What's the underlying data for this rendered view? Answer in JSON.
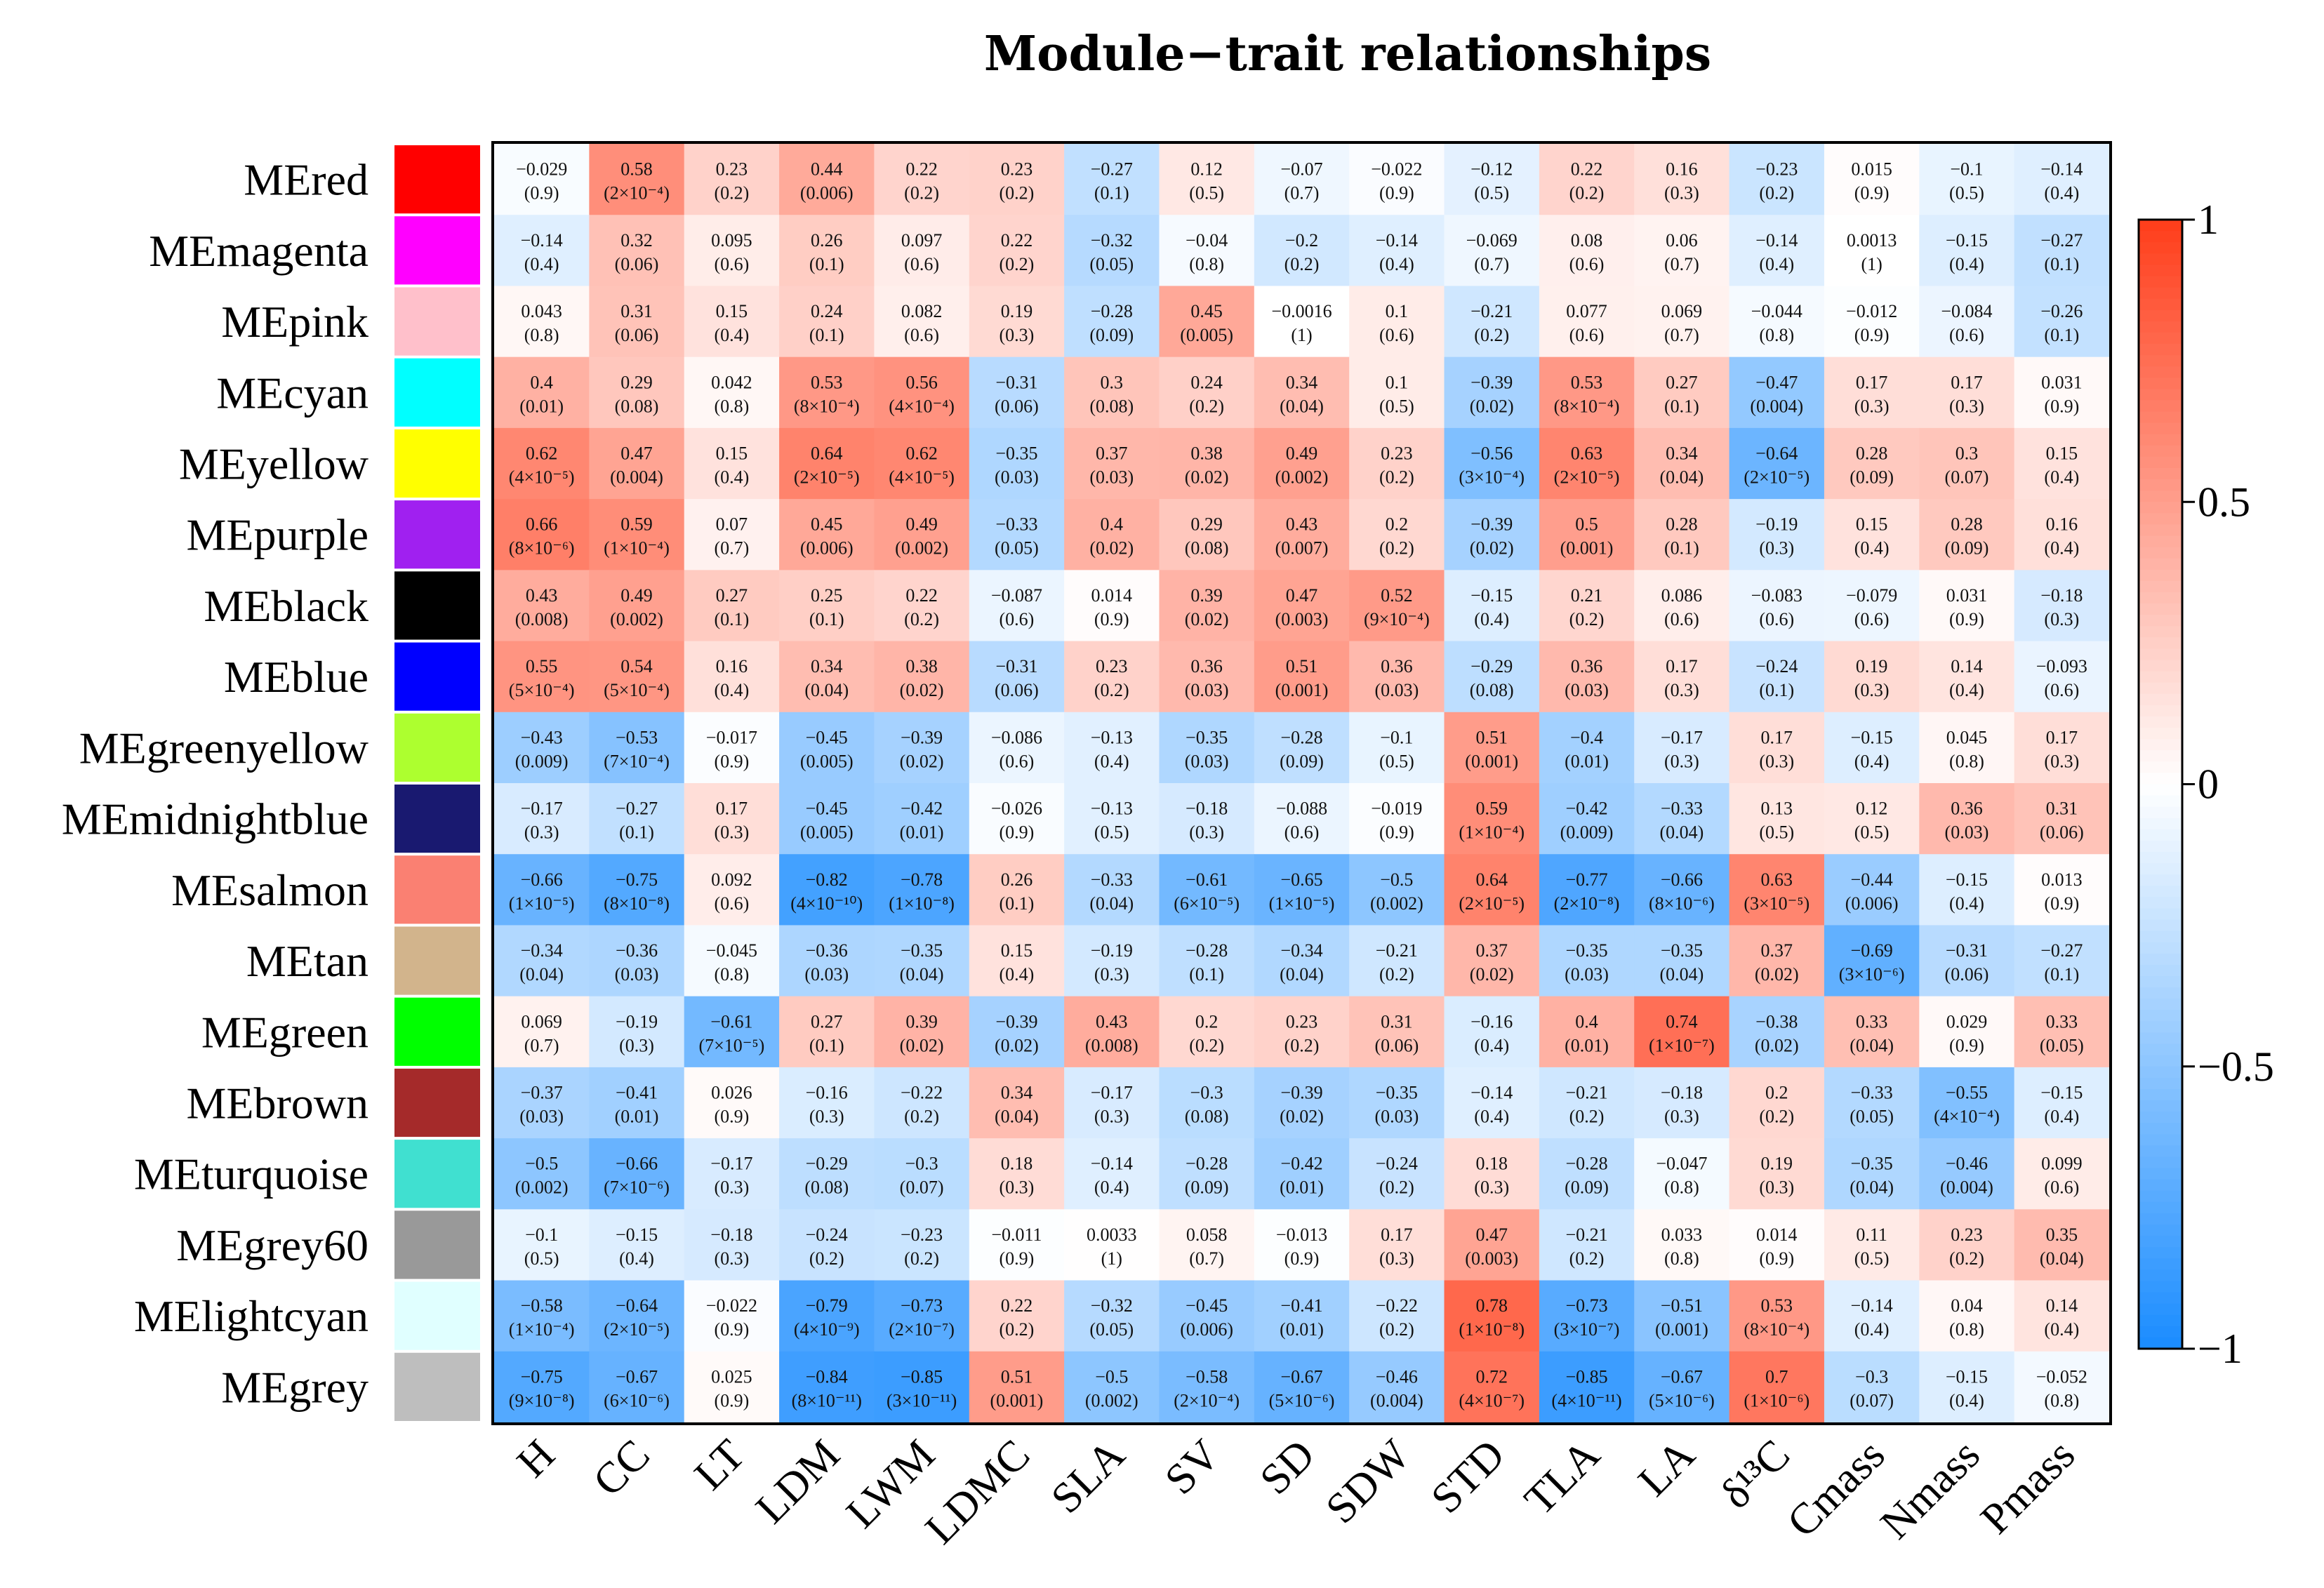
{
  "chart_data": {
    "type": "heatmap",
    "title": "Module−trait relationships",
    "rows": [
      "MEred",
      "MEmagenta",
      "MEpink",
      "MEcyan",
      "MEyellow",
      "MEpurple",
      "MEblack",
      "MEblue",
      "MEgreenyellow",
      "MEmidnightblue",
      "MEsalmon",
      "MEtan",
      "MEgreen",
      "MEbrown",
      "MEturquoise",
      "MEgrey60",
      "MElightcyan",
      "MEgrey"
    ],
    "row_colors": [
      "#ff0000",
      "#ff00ff",
      "#ffc0cb",
      "#00ffff",
      "#ffff00",
      "#a020f0",
      "#000000",
      "#0000ff",
      "#adff2f",
      "#191970",
      "#fa8072",
      "#d2b48c",
      "#00ff00",
      "#a52a2a",
      "#40e0d0",
      "#999999",
      "#e0ffff",
      "#bebebe"
    ],
    "columns": [
      "H",
      "CC",
      "LT",
      "LDM",
      "LWM",
      "LDMC",
      "SLA",
      "SV",
      "SD",
      "SDW",
      "STD",
      "TLA",
      "LA",
      "δ¹³C",
      "Cmass",
      "Nmass",
      "Pmass"
    ],
    "values": [
      [
        -0.029,
        0.58,
        0.23,
        0.44,
        0.22,
        0.23,
        -0.27,
        0.12,
        -0.07,
        -0.022,
        -0.12,
        0.22,
        0.16,
        -0.23,
        0.015,
        -0.1,
        -0.14
      ],
      [
        -0.14,
        0.32,
        0.095,
        0.26,
        0.097,
        0.22,
        -0.32,
        -0.04,
        -0.2,
        -0.14,
        -0.069,
        0.08,
        0.06,
        -0.14,
        0.0013,
        -0.15,
        -0.27
      ],
      [
        0.043,
        0.31,
        0.15,
        0.24,
        0.082,
        0.19,
        -0.28,
        0.45,
        -0.0016,
        0.1,
        -0.21,
        0.077,
        0.069,
        -0.044,
        -0.012,
        -0.084,
        -0.26
      ],
      [
        0.4,
        0.29,
        0.042,
        0.53,
        0.56,
        -0.31,
        0.3,
        0.24,
        0.34,
        0.1,
        -0.39,
        0.53,
        0.27,
        -0.47,
        0.17,
        0.17,
        0.031
      ],
      [
        0.62,
        0.47,
        0.15,
        0.64,
        0.62,
        -0.35,
        0.37,
        0.38,
        0.49,
        0.23,
        -0.56,
        0.63,
        0.34,
        -0.64,
        0.28,
        0.3,
        0.15
      ],
      [
        0.66,
        0.59,
        0.07,
        0.45,
        0.49,
        -0.33,
        0.4,
        0.29,
        0.43,
        0.2,
        -0.39,
        0.5,
        0.28,
        -0.19,
        0.15,
        0.28,
        0.16
      ],
      [
        0.43,
        0.49,
        0.27,
        0.25,
        0.22,
        -0.087,
        0.014,
        0.39,
        0.47,
        0.52,
        -0.15,
        0.21,
        0.086,
        -0.083,
        -0.079,
        0.031,
        -0.18
      ],
      [
        0.55,
        0.54,
        0.16,
        0.34,
        0.38,
        -0.31,
        0.23,
        0.36,
        0.51,
        0.36,
        -0.29,
        0.36,
        0.17,
        -0.24,
        0.19,
        0.14,
        -0.093
      ],
      [
        -0.43,
        -0.53,
        -0.017,
        -0.45,
        -0.39,
        -0.086,
        -0.13,
        -0.35,
        -0.28,
        -0.1,
        0.51,
        -0.4,
        -0.17,
        0.17,
        -0.15,
        0.045,
        0.17
      ],
      [
        -0.17,
        -0.27,
        0.17,
        -0.45,
        -0.42,
        -0.026,
        -0.13,
        -0.18,
        -0.088,
        -0.019,
        0.59,
        -0.42,
        -0.33,
        0.13,
        0.12,
        0.36,
        0.31
      ],
      [
        -0.66,
        -0.75,
        0.092,
        -0.82,
        -0.78,
        0.26,
        -0.33,
        -0.61,
        -0.65,
        -0.5,
        0.64,
        -0.77,
        -0.66,
        0.63,
        -0.44,
        -0.15,
        0.013
      ],
      [
        -0.34,
        -0.36,
        -0.045,
        -0.36,
        -0.35,
        0.15,
        -0.19,
        -0.28,
        -0.34,
        -0.21,
        0.37,
        -0.35,
        -0.35,
        0.37,
        -0.69,
        -0.31,
        -0.27
      ],
      [
        0.069,
        -0.19,
        -0.61,
        0.27,
        0.39,
        -0.39,
        0.43,
        0.2,
        0.23,
        0.31,
        -0.16,
        0.4,
        0.74,
        -0.38,
        0.33,
        0.029,
        0.33
      ],
      [
        -0.37,
        -0.41,
        0.026,
        -0.16,
        -0.22,
        0.34,
        -0.17,
        -0.3,
        -0.39,
        -0.35,
        -0.14,
        -0.21,
        -0.18,
        0.2,
        -0.33,
        -0.55,
        -0.15
      ],
      [
        -0.5,
        -0.66,
        -0.17,
        -0.29,
        -0.3,
        0.18,
        -0.14,
        -0.28,
        -0.42,
        -0.24,
        0.18,
        -0.28,
        -0.047,
        0.19,
        -0.35,
        -0.46,
        0.099
      ],
      [
        -0.1,
        -0.15,
        -0.18,
        -0.24,
        -0.23,
        -0.011,
        0.0033,
        0.058,
        -0.013,
        0.17,
        0.47,
        -0.21,
        0.033,
        0.014,
        0.11,
        0.23,
        0.35
      ],
      [
        -0.58,
        -0.64,
        -0.022,
        -0.79,
        -0.73,
        0.22,
        -0.32,
        -0.45,
        -0.41,
        -0.22,
        0.78,
        -0.73,
        -0.51,
        0.53,
        -0.14,
        0.04,
        0.14
      ],
      [
        -0.75,
        -0.67,
        0.025,
        -0.84,
        -0.85,
        0.51,
        -0.5,
        -0.58,
        -0.67,
        -0.46,
        0.72,
        -0.85,
        -0.67,
        0.7,
        -0.3,
        -0.15,
        -0.052
      ]
    ],
    "pvalues": [
      [
        "(0.9)",
        "(2×10⁻⁴)",
        "(0.2)",
        "(0.006)",
        "(0.2)",
        "(0.2)",
        "(0.1)",
        "(0.5)",
        "(0.7)",
        "(0.9)",
        "(0.5)",
        "(0.2)",
        "(0.3)",
        "(0.2)",
        "(0.9)",
        "(0.5)",
        "(0.4)"
      ],
      [
        "(0.4)",
        "(0.06)",
        "(0.6)",
        "(0.1)",
        "(0.6)",
        "(0.2)",
        "(0.05)",
        "(0.8)",
        "(0.2)",
        "(0.4)",
        "(0.7)",
        "(0.6)",
        "(0.7)",
        "(0.4)",
        "(1)",
        "(0.4)",
        "(0.1)"
      ],
      [
        "(0.8)",
        "(0.06)",
        "(0.4)",
        "(0.1)",
        "(0.6)",
        "(0.3)",
        "(0.09)",
        "(0.005)",
        "(1)",
        "(0.6)",
        "(0.2)",
        "(0.6)",
        "(0.7)",
        "(0.8)",
        "(0.9)",
        "(0.6)",
        "(0.1)"
      ],
      [
        "(0.01)",
        "(0.08)",
        "(0.8)",
        "(8×10⁻⁴)",
        "(4×10⁻⁴)",
        "(0.06)",
        "(0.08)",
        "(0.2)",
        "(0.04)",
        "(0.5)",
        "(0.02)",
        "(8×10⁻⁴)",
        "(0.1)",
        "(0.004)",
        "(0.3)",
        "(0.3)",
        "(0.9)"
      ],
      [
        "(4×10⁻⁵)",
        "(0.004)",
        "(0.4)",
        "(2×10⁻⁵)",
        "(4×10⁻⁵)",
        "(0.03)",
        "(0.03)",
        "(0.02)",
        "(0.002)",
        "(0.2)",
        "(3×10⁻⁴)",
        "(2×10⁻⁵)",
        "(0.04)",
        "(2×10⁻⁵)",
        "(0.09)",
        "(0.07)",
        "(0.4)"
      ],
      [
        "(8×10⁻⁶)",
        "(1×10⁻⁴)",
        "(0.7)",
        "(0.006)",
        "(0.002)",
        "(0.05)",
        "(0.02)",
        "(0.08)",
        "(0.007)",
        "(0.2)",
        "(0.02)",
        "(0.001)",
        "(0.1)",
        "(0.3)",
        "(0.4)",
        "(0.09)",
        "(0.4)"
      ],
      [
        "(0.008)",
        "(0.002)",
        "(0.1)",
        "(0.1)",
        "(0.2)",
        "(0.6)",
        "(0.9)",
        "(0.02)",
        "(0.003)",
        "(9×10⁻⁴)",
        "(0.4)",
        "(0.2)",
        "(0.6)",
        "(0.6)",
        "(0.6)",
        "(0.9)",
        "(0.3)"
      ],
      [
        "(5×10⁻⁴)",
        "(5×10⁻⁴)",
        "(0.4)",
        "(0.04)",
        "(0.02)",
        "(0.06)",
        "(0.2)",
        "(0.03)",
        "(0.001)",
        "(0.03)",
        "(0.08)",
        "(0.03)",
        "(0.3)",
        "(0.1)",
        "(0.3)",
        "(0.4)",
        "(0.6)"
      ],
      [
        "(0.009)",
        "(7×10⁻⁴)",
        "(0.9)",
        "(0.005)",
        "(0.02)",
        "(0.6)",
        "(0.4)",
        "(0.03)",
        "(0.09)",
        "(0.5)",
        "(0.001)",
        "(0.01)",
        "(0.3)",
        "(0.3)",
        "(0.4)",
        "(0.8)",
        "(0.3)"
      ],
      [
        "(0.3)",
        "(0.1)",
        "(0.3)",
        "(0.005)",
        "(0.01)",
        "(0.9)",
        "(0.5)",
        "(0.3)",
        "(0.6)",
        "(0.9)",
        "(1×10⁻⁴)",
        "(0.009)",
        "(0.04)",
        "(0.5)",
        "(0.5)",
        "(0.03)",
        "(0.06)"
      ],
      [
        "(1×10⁻⁵)",
        "(8×10⁻⁸)",
        "(0.6)",
        "(4×10⁻¹⁰)",
        "(1×10⁻⁸)",
        "(0.1)",
        "(0.04)",
        "(6×10⁻⁵)",
        "(1×10⁻⁵)",
        "(0.002)",
        "(2×10⁻⁵)",
        "(2×10⁻⁸)",
        "(8×10⁻⁶)",
        "(3×10⁻⁵)",
        "(0.006)",
        "(0.4)",
        "(0.9)"
      ],
      [
        "(0.04)",
        "(0.03)",
        "(0.8)",
        "(0.03)",
        "(0.04)",
        "(0.4)",
        "(0.3)",
        "(0.1)",
        "(0.04)",
        "(0.2)",
        "(0.02)",
        "(0.03)",
        "(0.04)",
        "(0.02)",
        "(3×10⁻⁶)",
        "(0.06)",
        "(0.1)"
      ],
      [
        "(0.7)",
        "(0.3)",
        "(7×10⁻⁵)",
        "(0.1)",
        "(0.02)",
        "(0.02)",
        "(0.008)",
        "(0.2)",
        "(0.2)",
        "(0.06)",
        "(0.4)",
        "(0.01)",
        "(1×10⁻⁷)",
        "(0.02)",
        "(0.04)",
        "(0.9)",
        "(0.05)"
      ],
      [
        "(0.03)",
        "(0.01)",
        "(0.9)",
        "(0.3)",
        "(0.2)",
        "(0.04)",
        "(0.3)",
        "(0.08)",
        "(0.02)",
        "(0.03)",
        "(0.4)",
        "(0.2)",
        "(0.3)",
        "(0.2)",
        "(0.05)",
        "(4×10⁻⁴)",
        "(0.4)"
      ],
      [
        "(0.002)",
        "(7×10⁻⁶)",
        "(0.3)",
        "(0.08)",
        "(0.07)",
        "(0.3)",
        "(0.4)",
        "(0.09)",
        "(0.01)",
        "(0.2)",
        "(0.3)",
        "(0.09)",
        "(0.8)",
        "(0.3)",
        "(0.04)",
        "(0.004)",
        "(0.6)"
      ],
      [
        "(0.5)",
        "(0.4)",
        "(0.3)",
        "(0.2)",
        "(0.2)",
        "(0.9)",
        "(1)",
        "(0.7)",
        "(0.9)",
        "(0.3)",
        "(0.003)",
        "(0.2)",
        "(0.8)",
        "(0.9)",
        "(0.5)",
        "(0.2)",
        "(0.04)"
      ],
      [
        "(1×10⁻⁴)",
        "(2×10⁻⁵)",
        "(0.9)",
        "(4×10⁻⁹)",
        "(2×10⁻⁷)",
        "(0.2)",
        "(0.05)",
        "(0.006)",
        "(0.01)",
        "(0.2)",
        "(1×10⁻⁸)",
        "(3×10⁻⁷)",
        "(0.001)",
        "(8×10⁻⁴)",
        "(0.4)",
        "(0.8)",
        "(0.4)"
      ],
      [
        "(9×10⁻⁸)",
        "(6×10⁻⁶)",
        "(0.9)",
        "(8×10⁻¹¹)",
        "(3×10⁻¹¹)",
        "(0.001)",
        "(0.002)",
        "(2×10⁻⁴)",
        "(5×10⁻⁶)",
        "(0.004)",
        "(4×10⁻⁷)",
        "(4×10⁻¹¹)",
        "(5×10⁻⁶)",
        "(1×10⁻⁶)",
        "(0.07)",
        "(0.4)",
        "(0.8)"
      ]
    ],
    "colorbar": {
      "range": [
        -1,
        1
      ],
      "ticks": [
        1,
        0.5,
        0,
        -0.5,
        -1
      ],
      "tick_labels": [
        "1",
        "0.5",
        "0",
        "−0.5",
        "−1"
      ],
      "low_color": "#1a8cff",
      "mid_color": "#ffffff",
      "high_color": "#ff3d1a"
    }
  }
}
